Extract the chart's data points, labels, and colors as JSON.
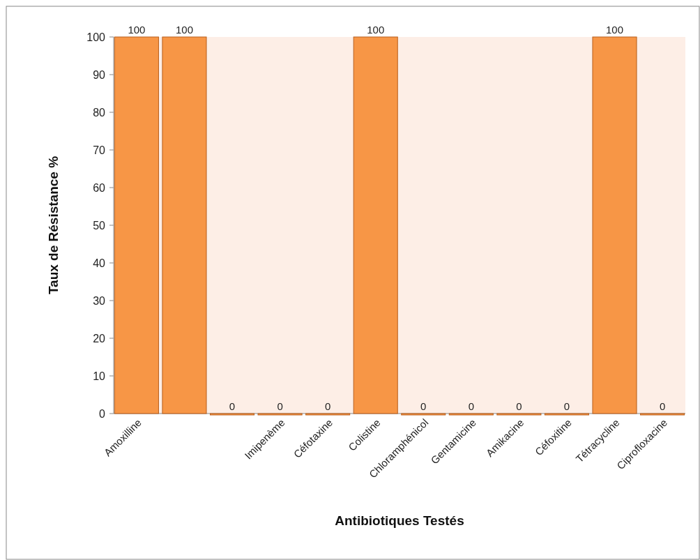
{
  "chart_data": {
    "type": "bar",
    "xlabel": "Antibiotiques Testés",
    "ylabel": "Taux de Résistance %",
    "categories": [
      "Amoxilline",
      null,
      null,
      "Imipenème",
      "Céfotaxine",
      "Colistine",
      "Chloramphénicol",
      "Gentamicine",
      "Amikacine",
      "Céfoxitine",
      "Tétracycline",
      "Ciprofloxacine"
    ],
    "values": [
      100,
      100,
      0,
      0,
      0,
      100,
      0,
      0,
      0,
      0,
      100,
      0
    ],
    "color": "#f79646",
    "ylim": [
      0,
      100
    ],
    "yticks": [
      0,
      10,
      20,
      30,
      40,
      50,
      60,
      70,
      80,
      90,
      100
    ],
    "data_labels": true,
    "grid": false
  }
}
